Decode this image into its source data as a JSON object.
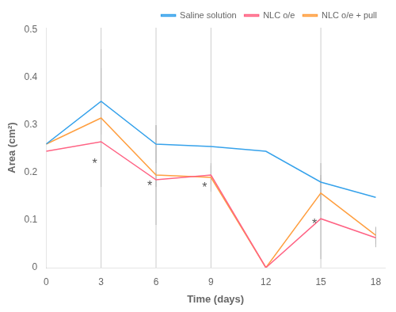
{
  "chart_data": {
    "type": "line",
    "xlabel": "Time (days)",
    "ylabel": "Area (cm²)",
    "x": [
      0,
      3,
      6,
      9,
      12,
      15,
      18
    ],
    "series": [
      {
        "name": "Saline solution",
        "values": [
          0.26,
          0.35,
          0.26,
          0.255,
          0.245,
          0.18,
          0.148
        ],
        "errors": [
          0.0,
          0.07,
          0.04,
          0.0,
          0.0,
          0.04,
          0.0
        ]
      },
      {
        "name": "NLC o/e",
        "values": [
          0.245,
          0.265,
          0.185,
          0.195,
          0.0,
          0.103,
          0.063
        ],
        "errors": [
          0.0,
          0.0,
          0.015,
          0.02,
          0.0,
          0.085,
          0.02
        ]
      },
      {
        "name": "NLC o/e + pull",
        "values": [
          0.26,
          0.315,
          0.195,
          0.19,
          0.0,
          0.157,
          0.068
        ],
        "errors": [
          0.0,
          0.145,
          0.105,
          0.03,
          0.0,
          0.038,
          0.018
        ]
      }
    ],
    "annotations": [
      {
        "text": "*",
        "x": 3,
        "y": 0.222
      },
      {
        "text": "*",
        "x": 6,
        "y": 0.176
      },
      {
        "text": "*",
        "x": 9,
        "y": 0.173
      },
      {
        "text": "*",
        "x": 15,
        "y": 0.095
      }
    ],
    "vlines": [
      3,
      6,
      9,
      15
    ],
    "xlim": [
      0,
      18.5
    ],
    "xticks": [
      0,
      3,
      6,
      9,
      12,
      15,
      18
    ],
    "ylim": [
      0,
      0.505
    ],
    "yticks": [
      0,
      0.1,
      0.2,
      0.3,
      0.4,
      0.5
    ],
    "marker": "none",
    "grid": false,
    "legend": "upper right"
  }
}
